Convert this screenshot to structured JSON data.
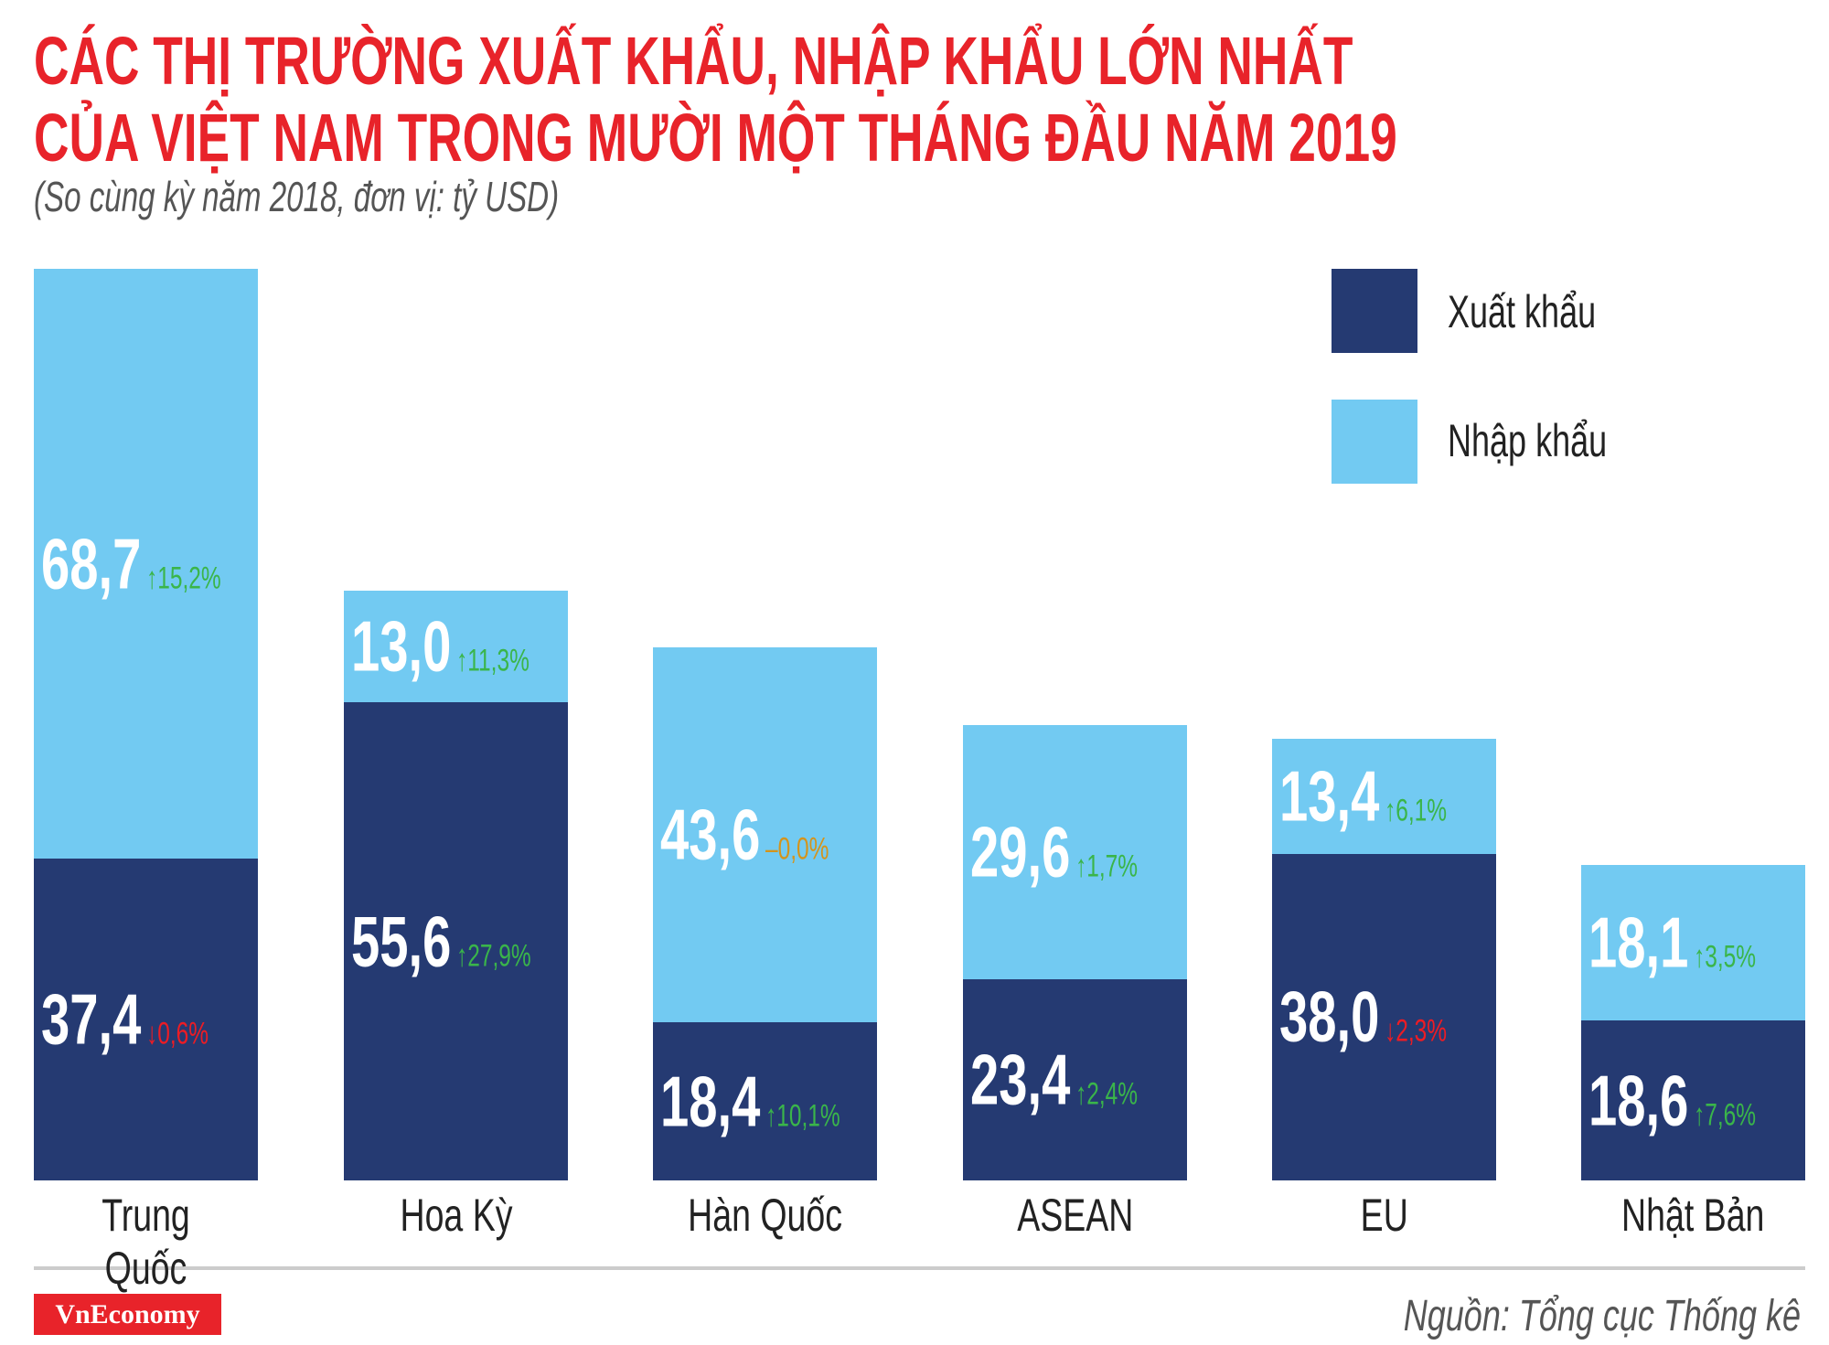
{
  "header": {
    "title_line1": "CÁC THỊ TRƯỜNG XUẤT KHẨU, NHẬP KHẨU LỚN NHẤT",
    "title_line2": "CỦA VIỆT NAM TRONG MƯỜI MỘT THÁNG ĐẦU NĂM 2019",
    "subtitle": "(So cùng kỳ năm 2018, đơn vị: tỷ USD)"
  },
  "colors": {
    "title": "#e8232a",
    "export": "#253a72",
    "import": "#72caf2",
    "up": "#3ab54a",
    "down": "#ed1c24",
    "flat": "#d4941c"
  },
  "chart_data": {
    "type": "bar",
    "stacked": true,
    "unit": "tỷ USD",
    "categories": [
      "Trung Quốc",
      "Hoa Kỳ",
      "Hàn Quốc",
      "ASEAN",
      "EU",
      "Nhật Bản"
    ],
    "series": [
      {
        "name": "Xuất khẩu",
        "values": [
          37.4,
          55.6,
          18.4,
          23.4,
          38.0,
          18.6
        ],
        "labels": [
          "37,4",
          "55,6",
          "18,4",
          "23,4",
          "38,0",
          "18,6"
        ],
        "changes": [
          "↓0,6%",
          "↑27,9%",
          "↑10,1%",
          "↑2,4%",
          "↓2,3%",
          "↑7,6%"
        ],
        "change_dir": [
          "down",
          "up",
          "up",
          "up",
          "down",
          "up"
        ]
      },
      {
        "name": "Nhập khẩu",
        "values": [
          68.7,
          13.0,
          43.6,
          29.6,
          13.4,
          18.1
        ],
        "labels": [
          "68,7",
          "13,0",
          "43,6",
          "29,6",
          "13,4",
          "18,1"
        ],
        "changes": [
          "↑15,2%",
          "↑11,3%",
          "–0,0%",
          "↑1,7%",
          "↑6,1%",
          "↑3,5%"
        ],
        "change_dir": [
          "up",
          "up",
          "flat",
          "up",
          "up",
          "up"
        ]
      }
    ],
    "legend": "top-right",
    "grid": false,
    "axes_visible": false
  },
  "footer": {
    "logo": "VnEconomy",
    "source": "Nguồn: Tổng cục Thống kê"
  }
}
